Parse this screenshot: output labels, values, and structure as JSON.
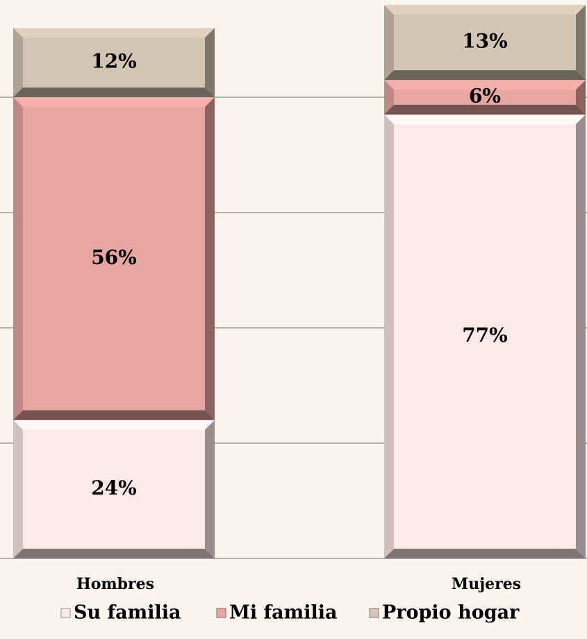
{
  "chart_data": {
    "type": "stacked-bar",
    "categories": [
      "Hombres",
      "Mujeres"
    ],
    "series": [
      {
        "name": "Su familia",
        "color": "#fde9e9",
        "values": [
          24,
          77
        ],
        "value_labels": [
          "24%",
          "77%"
        ]
      },
      {
        "name": "Mi familia",
        "color": "#e8a6a2",
        "values": [
          56,
          6
        ],
        "value_labels": [
          "56%",
          "6%"
        ]
      },
      {
        "name": "Propio hogar",
        "color": "#d3c5b3",
        "values": [
          12,
          13
        ],
        "value_labels": [
          "12%",
          "13%"
        ]
      }
    ],
    "ylim": [
      0,
      100
    ],
    "yticks": [
      0,
      20,
      40,
      60,
      80
    ],
    "grid": true,
    "legend": "bottom"
  }
}
